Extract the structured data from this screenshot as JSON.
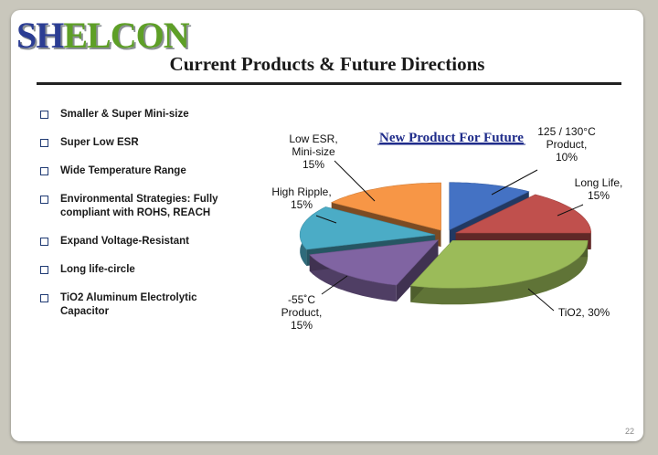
{
  "logo": {
    "part1": "SH",
    "part2": "ELCON"
  },
  "title": "Current Products & Future Directions",
  "bullets": [
    "Smaller & Super Mini-size",
    "Super Low ESR",
    "Wide Temperature Range",
    "Environmental Strategies: Fully compliant with ROHS, REACH",
    "Expand Voltage-Resistant",
    "Long life-circle",
    "TiO2 Aluminum Electrolytic Capacitor"
  ],
  "page_number": "22",
  "colors": {
    "blue": "#4472c4",
    "red": "#c0504d",
    "green": "#9bbb59",
    "purple": "#8064a2",
    "teal": "#4bacc6",
    "orange": "#f79646",
    "title": "#1f2c8a",
    "logo_blue": "#2b3d93",
    "logo_green": "#5e9f27"
  },
  "chart_data": {
    "type": "pie",
    "style": "3d-exploded",
    "title": "New Product For Future",
    "slices": [
      {
        "label_lines": [
          "125 / 130°C",
          "Product,",
          "10%"
        ],
        "value": 10,
        "color": "#4472c4"
      },
      {
        "label_lines": [
          "Long Life,",
          "15%"
        ],
        "value": 15,
        "color": "#c0504d"
      },
      {
        "label_lines": [
          "TiO2, 30%"
        ],
        "value": 30,
        "color": "#9bbb59"
      },
      {
        "label_lines": [
          "-55˚C",
          "Product,",
          "15%"
        ],
        "value": 15,
        "color": "#8064a2"
      },
      {
        "label_lines": [
          "High Ripple,",
          "15%"
        ],
        "value": 15,
        "color": "#4bacc6"
      },
      {
        "label_lines": [
          "Low ESR,",
          "Mini-size",
          "15%"
        ],
        "value": 15,
        "color": "#f79646"
      }
    ]
  }
}
